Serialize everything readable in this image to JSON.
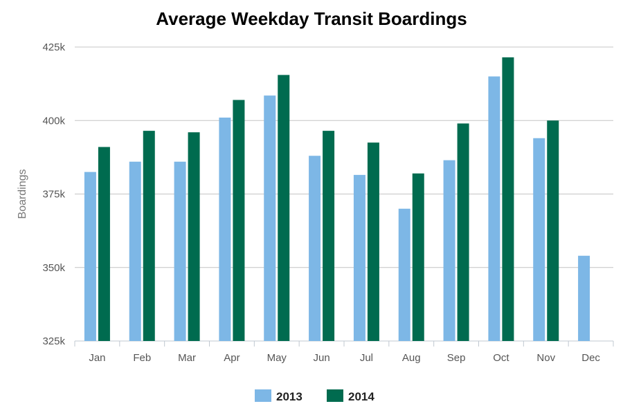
{
  "chart_data": {
    "type": "bar",
    "title": "Average Weekday Transit Boardings",
    "xlabel": "",
    "ylabel": "Boardings",
    "ylim": [
      325000,
      425000
    ],
    "yticks": [
      325000,
      350000,
      375000,
      400000,
      425000
    ],
    "ytick_labels": [
      "325k",
      "350k",
      "375k",
      "400k",
      "425k"
    ],
    "categories": [
      "Jan",
      "Feb",
      "Mar",
      "Apr",
      "May",
      "Jun",
      "Jul",
      "Aug",
      "Sep",
      "Oct",
      "Nov",
      "Dec"
    ],
    "series": [
      {
        "name": "2013",
        "color": "#7db7e6",
        "values": [
          382500,
          386000,
          386000,
          401000,
          408500,
          388000,
          381500,
          370000,
          386500,
          415000,
          394000,
          354000
        ]
      },
      {
        "name": "2014",
        "color": "#006b4f",
        "values": [
          391000,
          396500,
          396000,
          407000,
          415500,
          396500,
          392500,
          382000,
          399000,
          421500,
          400000,
          null
        ]
      }
    ],
    "grid": true,
    "legend_position": "bottom-center"
  }
}
